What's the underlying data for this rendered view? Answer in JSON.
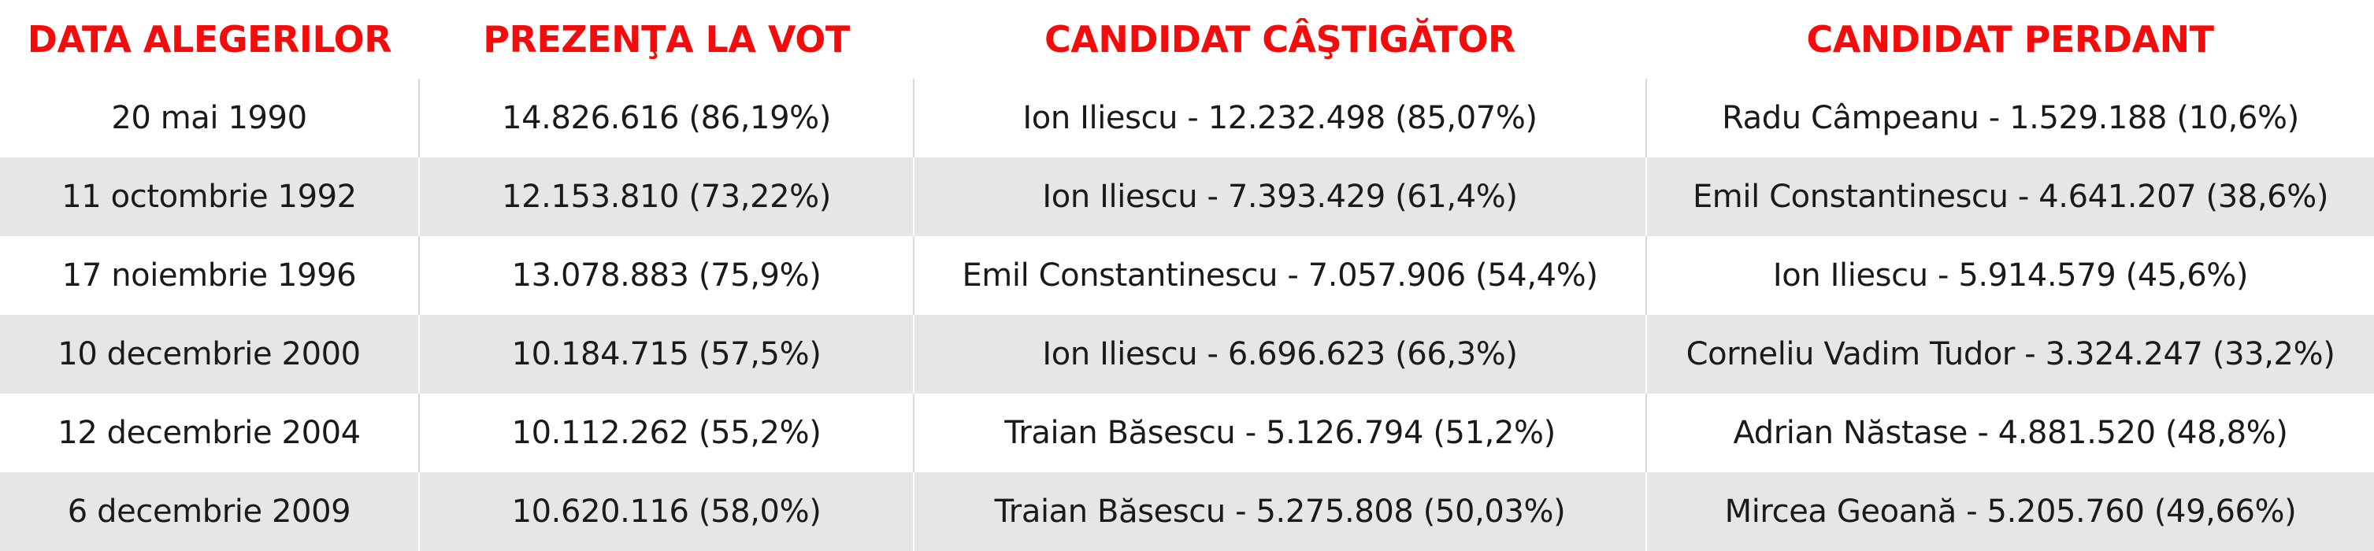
{
  "table": {
    "headers": [
      "DATA ALEGERILOR",
      "PREZENŢA LA VOT",
      "CANDIDAT CÂŞTIGĂTOR",
      "CANDIDAT PERDANT"
    ],
    "rows": [
      [
        "20 mai 1990",
        "14.826.616 (86,19%)",
        "Ion Iliescu - 12.232.498 (85,07%)",
        "Radu Câmpeanu - 1.529.188 (10,6%)"
      ],
      [
        "11 octombrie 1992",
        "12.153.810 (73,22%)",
        "Ion Iliescu - 7.393.429 (61,4%)",
        "Emil Constantinescu - 4.641.207 (38,6%)"
      ],
      [
        "17 noiembrie 1996",
        "13.078.883 (75,9%)",
        "Emil Constantinescu - 7.057.906 (54,4%)",
        "Ion Iliescu - 5.914.579 (45,6%)"
      ],
      [
        "10 decembrie 2000",
        "10.184.715 (57,5%)",
        "Ion Iliescu - 6.696.623 (66,3%)",
        "Corneliu Vadim Tudor - 3.324.247 (33,2%)"
      ],
      [
        "12 decembrie 2004",
        "10.112.262 (55,2%)",
        "Traian Băsescu - 5.126.794 (51,2%)",
        "Adrian Năstase - 4.881.520 (48,8%)"
      ],
      [
        "6 decembrie 2009",
        "10.620.116 (58,0%)",
        "Traian Băsescu - 5.275.808 (50,03%)",
        "Mircea Geoană - 5.205.760 (49,66%)"
      ]
    ]
  },
  "colors": {
    "header_text": "#f20c0c",
    "row_alt_background": "#e6e6e6",
    "cell_text": "#1a1a1a"
  }
}
